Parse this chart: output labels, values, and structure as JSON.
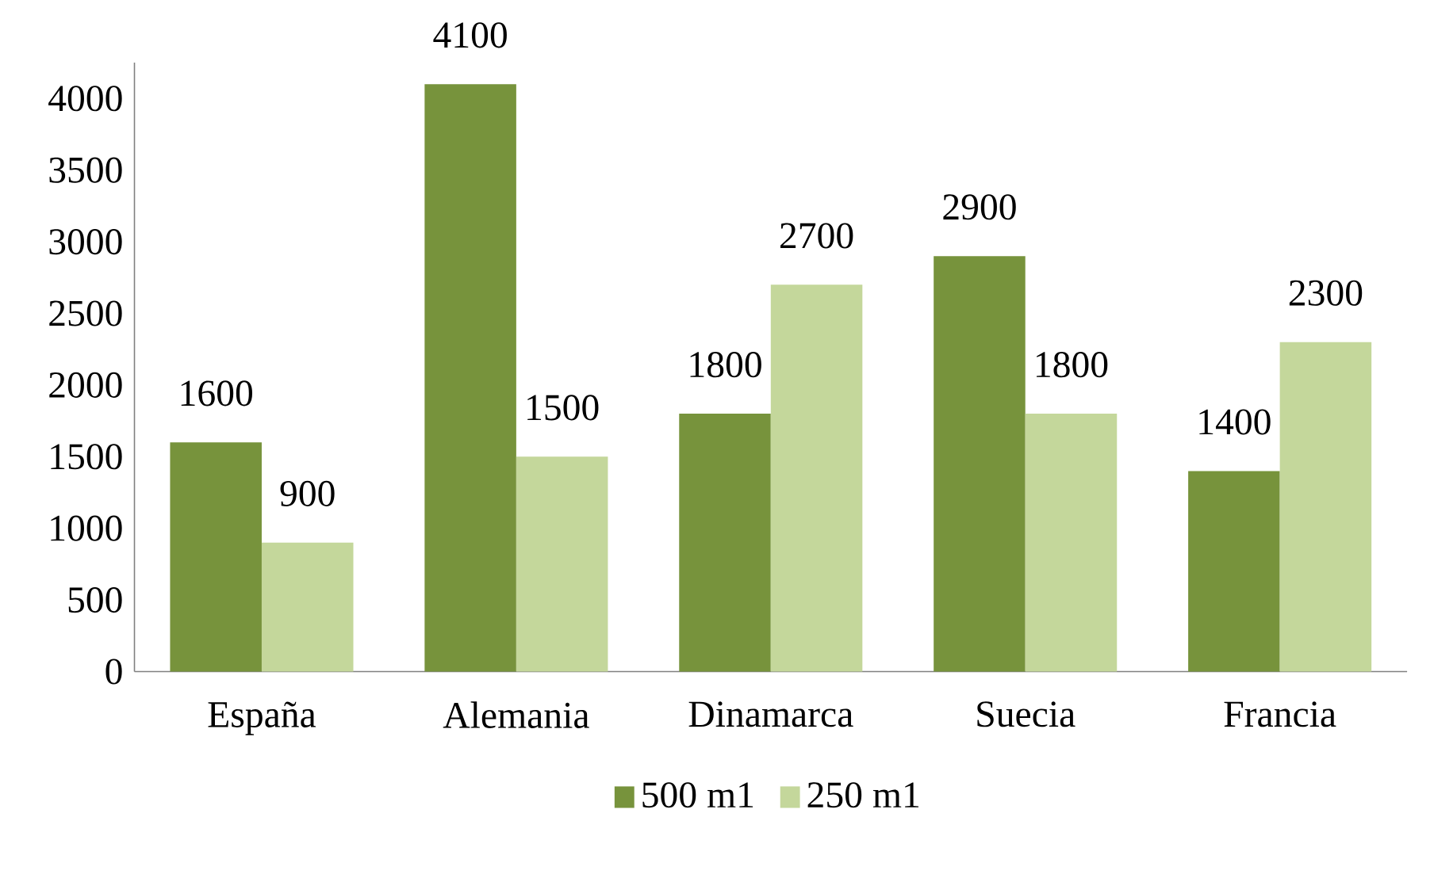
{
  "chart_data": {
    "type": "bar",
    "categories": [
      "España",
      "Alemania",
      "Dinamarca",
      "Suecia",
      "Francia"
    ],
    "series": [
      {
        "name": "500 m1",
        "color": "#77933c",
        "values": [
          1600,
          4100,
          1800,
          2900,
          1400
        ]
      },
      {
        "name": "250 m1",
        "color": "#c4d79b",
        "values": [
          900,
          1500,
          2700,
          1800,
          2300
        ]
      }
    ],
    "ylim": [
      0,
      4250
    ],
    "yticks": [
      0,
      500,
      1000,
      1500,
      2000,
      2500,
      3000,
      3500,
      4000
    ],
    "data_labels": true,
    "legend": "bottom",
    "grid": false
  }
}
